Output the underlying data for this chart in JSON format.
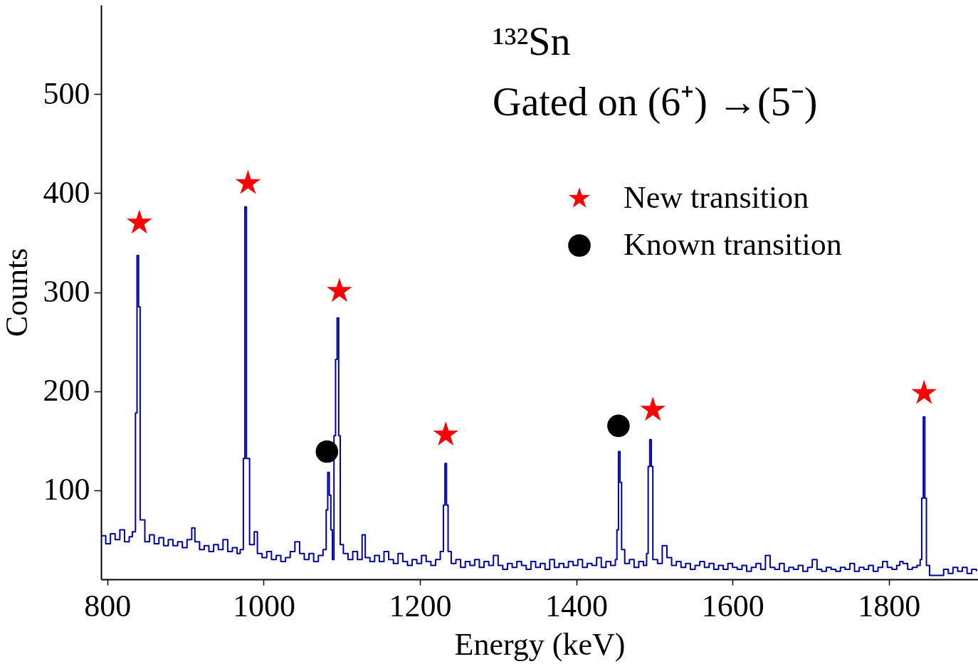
{
  "chart_data": {
    "type": "step",
    "xlabel": "Energy (keV)",
    "ylabel": "Counts",
    "annotations": [
      "¹³²Sn",
      "Gated on (6⁺) →(5⁻)"
    ],
    "xlim": [
      792,
      1914
    ],
    "ylim": [
      10,
      590
    ],
    "xticks": [
      800,
      1000,
      1200,
      1400,
      1600,
      1800
    ],
    "yticks": [
      100,
      200,
      300,
      400,
      500
    ],
    "grid": false,
    "legend": "top right",
    "line_style": "solid",
    "series": [
      {
        "color": "#0000a0",
        "marker": "none",
        "x": [
          792,
          798,
          804,
          810,
          816,
          822,
          828,
          832,
          836,
          838,
          840,
          842,
          848,
          854,
          860,
          866,
          872,
          878,
          884,
          890,
          896,
          902,
          908,
          912,
          918,
          924,
          930,
          936,
          942,
          948,
          954,
          960,
          966,
          970,
          974,
          976,
          978,
          982,
          988,
          992,
          998,
          1004,
          1010,
          1016,
          1022,
          1028,
          1034,
          1040,
          1046,
          1052,
          1058,
          1064,
          1070,
          1076,
          1080,
          1082,
          1084,
          1086,
          1088,
          1090,
          1092,
          1094,
          1096,
          1098,
          1102,
          1108,
          1114,
          1120,
          1126,
          1130,
          1136,
          1142,
          1148,
          1154,
          1160,
          1166,
          1172,
          1178,
          1184,
          1190,
          1196,
          1202,
          1208,
          1214,
          1220,
          1226,
          1230,
          1232,
          1234,
          1236,
          1240,
          1246,
          1252,
          1258,
          1264,
          1270,
          1276,
          1282,
          1288,
          1294,
          1300,
          1306,
          1312,
          1318,
          1324,
          1330,
          1336,
          1342,
          1348,
          1354,
          1360,
          1366,
          1372,
          1378,
          1384,
          1390,
          1396,
          1402,
          1408,
          1414,
          1420,
          1426,
          1432,
          1438,
          1444,
          1450,
          1452,
          1454,
          1456,
          1458,
          1462,
          1468,
          1474,
          1480,
          1486,
          1490,
          1492,
          1494,
          1496,
          1498,
          1504,
          1510,
          1516,
          1522,
          1528,
          1534,
          1540,
          1546,
          1552,
          1558,
          1564,
          1570,
          1576,
          1582,
          1588,
          1594,
          1600,
          1606,
          1612,
          1618,
          1624,
          1630,
          1636,
          1642,
          1648,
          1654,
          1660,
          1666,
          1672,
          1678,
          1684,
          1690,
          1696,
          1702,
          1708,
          1714,
          1720,
          1726,
          1732,
          1738,
          1744,
          1750,
          1756,
          1762,
          1768,
          1774,
          1780,
          1786,
          1792,
          1798,
          1804,
          1810,
          1814,
          1818,
          1824,
          1830,
          1836,
          1840,
          1842,
          1844,
          1846,
          1848,
          1852,
          1858,
          1864,
          1870,
          1876,
          1882,
          1888,
          1894,
          1900,
          1906,
          1912
        ],
        "values": [
          54,
          46,
          56,
          50,
          60,
          48,
          53,
          58,
          178,
          337,
          285,
          70,
          48,
          55,
          46,
          52,
          44,
          50,
          44,
          48,
          42,
          50,
          62,
          48,
          40,
          44,
          38,
          45,
          40,
          50,
          38,
          42,
          36,
          40,
          132,
          386,
          132,
          45,
          58,
          36,
          32,
          38,
          30,
          34,
          28,
          32,
          38,
          48,
          36,
          30,
          36,
          28,
          34,
          40,
          80,
          118,
          95,
          60,
          30,
          155,
          232,
          274,
          155,
          45,
          36,
          30,
          38,
          30,
          55,
          32,
          28,
          34,
          28,
          38,
          30,
          26,
          36,
          28,
          24,
          30,
          26,
          34,
          28,
          24,
          30,
          38,
          85,
          127,
          85,
          38,
          26,
          30,
          22,
          28,
          24,
          30,
          22,
          28,
          24,
          34,
          24,
          20,
          26,
          22,
          28,
          24,
          20,
          28,
          22,
          26,
          20,
          30,
          22,
          26,
          22,
          28,
          24,
          30,
          22,
          26,
          24,
          32,
          22,
          28,
          24,
          30,
          60,
          139,
          108,
          40,
          26,
          30,
          22,
          28,
          24,
          36,
          124,
          151,
          124,
          30,
          26,
          44,
          32,
          24,
          28,
          22,
          26,
          20,
          24,
          28,
          22,
          26,
          20,
          24,
          20,
          26,
          22,
          20,
          24,
          18,
          22,
          26,
          20,
          34,
          22,
          20,
          26,
          18,
          22,
          20,
          24,
          18,
          22,
          30,
          20,
          18,
          22,
          20,
          18,
          22,
          20,
          26,
          18,
          22,
          20,
          24,
          18,
          22,
          28,
          22,
          20,
          24,
          28,
          26,
          20,
          22,
          24,
          30,
          92,
          174,
          92,
          24,
          14,
          14,
          14,
          20,
          16,
          22,
          18,
          22,
          16,
          20,
          18
        ]
      },
      {
        "type": "scatter",
        "name": "New transition",
        "color": "#ff0000",
        "marker": "star",
        "x": [
          841,
          980,
          1097,
          1233,
          1498,
          1845
        ],
        "values": [
          370,
          410,
          301,
          156,
          181,
          198
        ]
      },
      {
        "type": "scatter",
        "name": "Known transition",
        "color": "#000000",
        "marker": "circle",
        "x": [
          1081,
          1454
        ],
        "values": [
          139,
          165
        ]
      }
    ]
  }
}
